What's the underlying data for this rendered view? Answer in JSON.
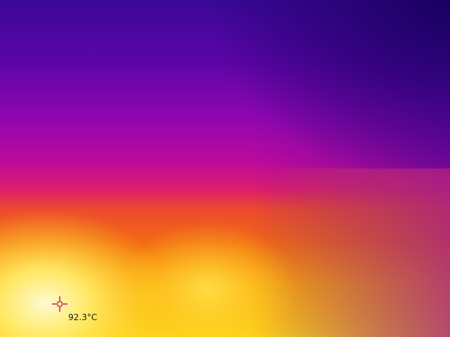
{
  "thermal_view": {
    "palette": "ironbow",
    "spot_measurement": {
      "temperature_label": "92.3°C",
      "marker_icon": "crosshair-icon",
      "marker_color": "#c2185b"
    }
  }
}
